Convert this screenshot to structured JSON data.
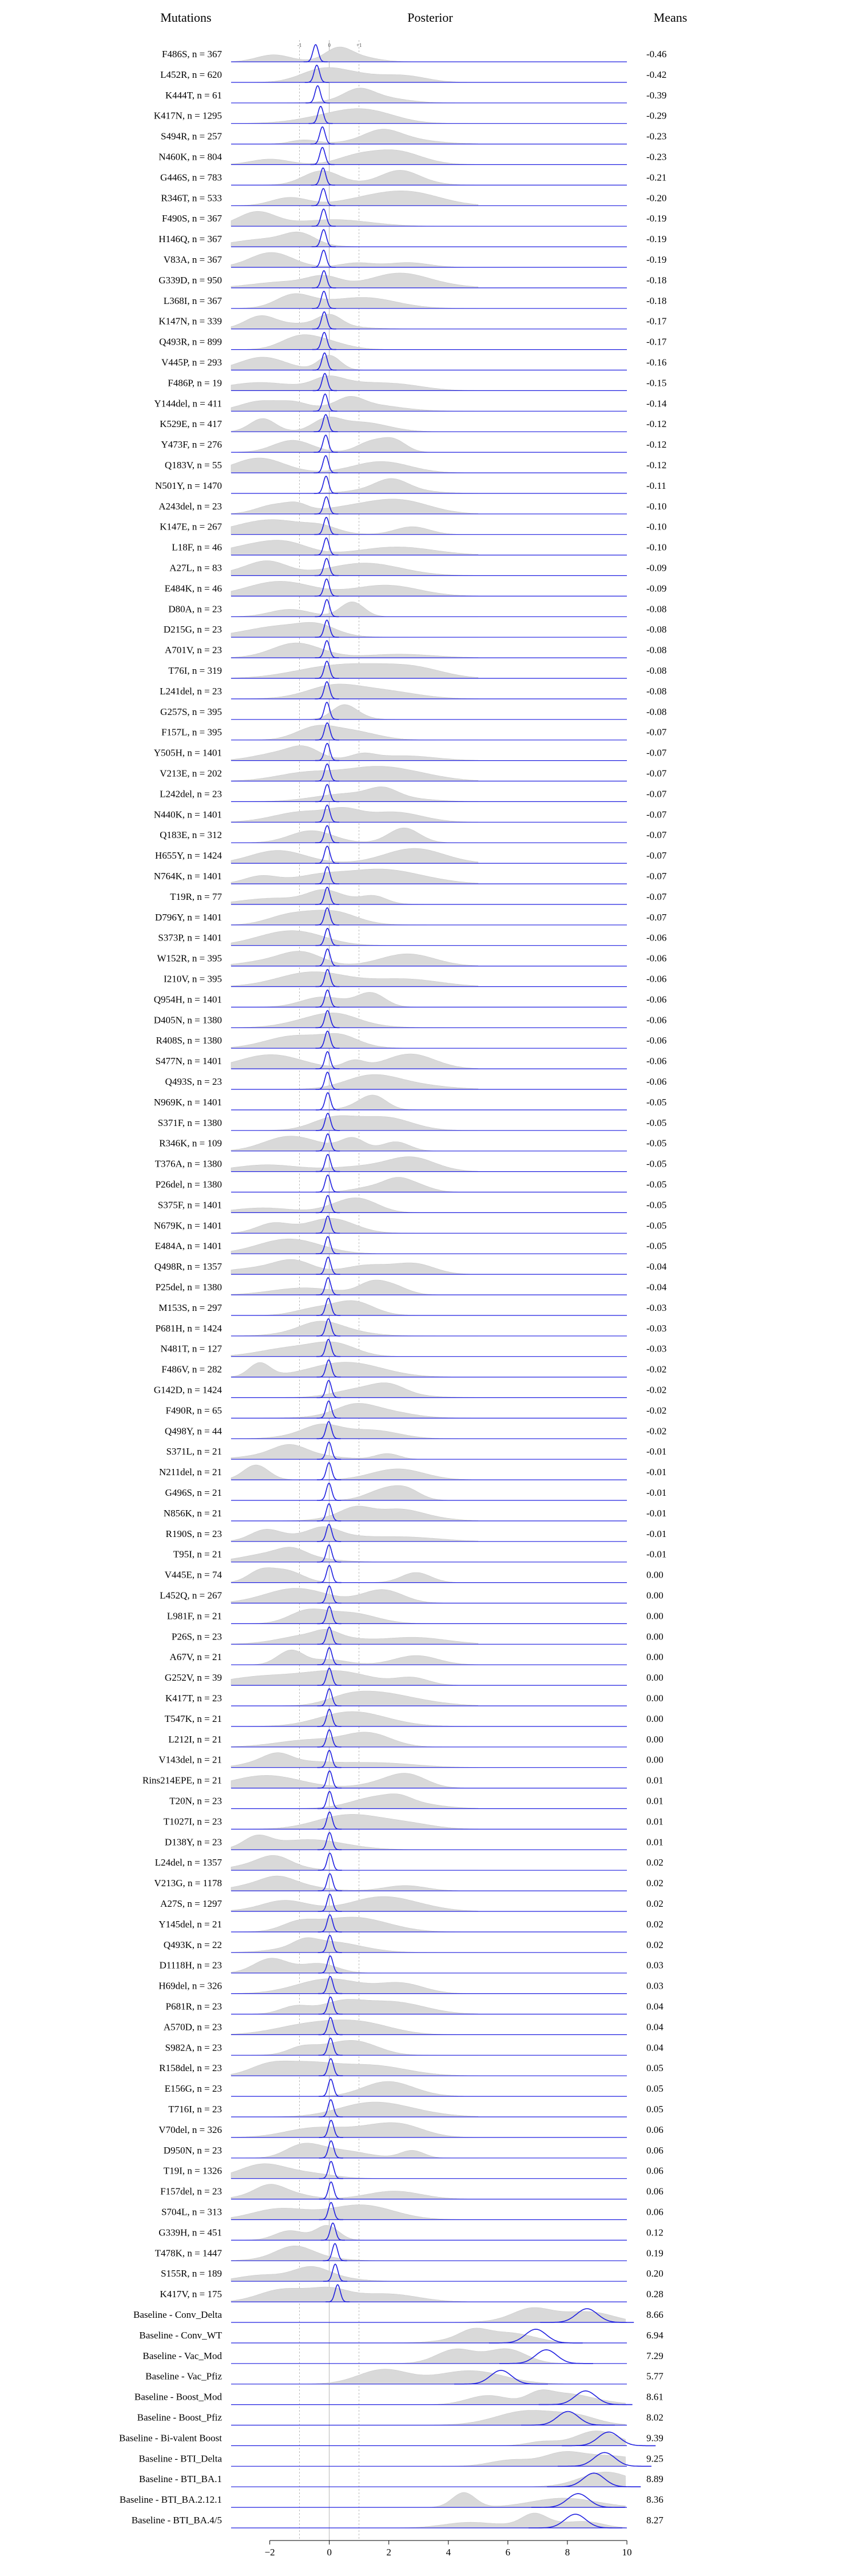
{
  "headers": {
    "left": "Mutations",
    "center": "Posterior",
    "right": "Means"
  },
  "chart_data": {
    "type": "ridgeline",
    "xlim": [
      -3.3,
      10
    ],
    "xticks": [
      -2,
      0,
      2,
      4,
      6,
      8,
      10
    ],
    "reference_lines": [
      -1,
      0,
      1
    ],
    "grid": false,
    "colors": {
      "posterior": "#1f1fe0",
      "background_density": "#d9d9d9",
      "reference": "#999999"
    },
    "rows": [
      {
        "label": "F486S, n = 367",
        "mean": -0.46
      },
      {
        "label": "L452R, n = 620",
        "mean": -0.42
      },
      {
        "label": "K444T, n = 61",
        "mean": -0.39
      },
      {
        "label": "K417N, n = 1295",
        "mean": -0.29
      },
      {
        "label": "S494R, n = 257",
        "mean": -0.23
      },
      {
        "label": "N460K, n = 804",
        "mean": -0.23
      },
      {
        "label": "G446S, n = 783",
        "mean": -0.21
      },
      {
        "label": "R346T, n = 533",
        "mean": -0.2
      },
      {
        "label": "F490S, n = 367",
        "mean": -0.19
      },
      {
        "label": "H146Q, n = 367",
        "mean": -0.19
      },
      {
        "label": "V83A, n = 367",
        "mean": -0.19
      },
      {
        "label": "G339D, n = 950",
        "mean": -0.18
      },
      {
        "label": "L368I, n = 367",
        "mean": -0.18
      },
      {
        "label": "K147N, n = 339",
        "mean": -0.17
      },
      {
        "label": "Q493R, n = 899",
        "mean": -0.17
      },
      {
        "label": "V445P, n = 293",
        "mean": -0.16
      },
      {
        "label": "F486P, n = 19",
        "mean": -0.15
      },
      {
        "label": "Y144del, n = 411",
        "mean": -0.14
      },
      {
        "label": "K529E, n = 417",
        "mean": -0.12
      },
      {
        "label": "Y473F, n = 276",
        "mean": -0.12
      },
      {
        "label": "Q183V, n = 55",
        "mean": -0.12
      },
      {
        "label": "N501Y, n = 1470",
        "mean": -0.11
      },
      {
        "label": "A243del, n = 23",
        "mean": -0.1
      },
      {
        "label": "K147E, n = 267",
        "mean": -0.1
      },
      {
        "label": "L18F, n = 46",
        "mean": -0.1
      },
      {
        "label": "A27L, n = 83",
        "mean": -0.09
      },
      {
        "label": "E484K, n = 46",
        "mean": -0.09
      },
      {
        "label": "D80A, n = 23",
        "mean": -0.08
      },
      {
        "label": "D215G, n = 23",
        "mean": -0.08
      },
      {
        "label": "A701V, n = 23",
        "mean": -0.08
      },
      {
        "label": "T76I, n = 319",
        "mean": -0.08
      },
      {
        "label": "L241del, n = 23",
        "mean": -0.08
      },
      {
        "label": "G257S, n = 395",
        "mean": -0.08
      },
      {
        "label": "F157L, n = 395",
        "mean": -0.07
      },
      {
        "label": "Y505H, n = 1401",
        "mean": -0.07
      },
      {
        "label": "V213E, n = 202",
        "mean": -0.07
      },
      {
        "label": "L242del, n = 23",
        "mean": -0.07
      },
      {
        "label": "N440K, n = 1401",
        "mean": -0.07
      },
      {
        "label": "Q183E, n = 312",
        "mean": -0.07
      },
      {
        "label": "H655Y, n = 1424",
        "mean": -0.07
      },
      {
        "label": "N764K, n = 1401",
        "mean": -0.07
      },
      {
        "label": "T19R, n = 77",
        "mean": -0.07
      },
      {
        "label": "D796Y, n = 1401",
        "mean": -0.07
      },
      {
        "label": "S373P, n = 1401",
        "mean": -0.06
      },
      {
        "label": "W152R, n = 395",
        "mean": -0.06
      },
      {
        "label": "I210V, n = 395",
        "mean": -0.06
      },
      {
        "label": "Q954H, n = 1401",
        "mean": -0.06
      },
      {
        "label": "D405N, n = 1380",
        "mean": -0.06
      },
      {
        "label": "R408S, n = 1380",
        "mean": -0.06
      },
      {
        "label": "S477N, n = 1401",
        "mean": -0.06
      },
      {
        "label": "Q493S, n = 23",
        "mean": -0.06
      },
      {
        "label": "N969K, n = 1401",
        "mean": -0.05
      },
      {
        "label": "S371F, n = 1380",
        "mean": -0.05
      },
      {
        "label": "R346K, n = 109",
        "mean": -0.05
      },
      {
        "label": "T376A, n = 1380",
        "mean": -0.05
      },
      {
        "label": "P26del, n = 1380",
        "mean": -0.05
      },
      {
        "label": "S375F, n = 1401",
        "mean": -0.05
      },
      {
        "label": "N679K, n = 1401",
        "mean": -0.05
      },
      {
        "label": "E484A, n = 1401",
        "mean": -0.05
      },
      {
        "label": "Q498R, n = 1357",
        "mean": -0.04
      },
      {
        "label": "P25del, n = 1380",
        "mean": -0.04
      },
      {
        "label": "M153S, n = 297",
        "mean": -0.03
      },
      {
        "label": "P681H, n = 1424",
        "mean": -0.03
      },
      {
        "label": "N481T, n = 127",
        "mean": -0.03
      },
      {
        "label": "F486V, n = 282",
        "mean": -0.02
      },
      {
        "label": "G142D, n = 1424",
        "mean": -0.02
      },
      {
        "label": "F490R, n = 65",
        "mean": -0.02
      },
      {
        "label": "Q498Y, n = 44",
        "mean": -0.02
      },
      {
        "label": "S371L, n = 21",
        "mean": -0.01
      },
      {
        "label": "N211del, n = 21",
        "mean": -0.01
      },
      {
        "label": "G496S, n = 21",
        "mean": -0.01
      },
      {
        "label": "N856K, n = 21",
        "mean": -0.01
      },
      {
        "label": "R190S, n = 23",
        "mean": -0.01
      },
      {
        "label": "T95I, n = 21",
        "mean": -0.01
      },
      {
        "label": "V445E, n = 74",
        "mean": -0.0
      },
      {
        "label": "L452Q, n = 267",
        "mean": -0.0
      },
      {
        "label": "L981F, n = 21",
        "mean": -0.0
      },
      {
        "label": "P26S, n = 23",
        "mean": -0.0
      },
      {
        "label": "A67V, n = 21",
        "mean": -0.0
      },
      {
        "label": "G252V, n = 39",
        "mean": -0.0
      },
      {
        "label": "K417T, n = 23",
        "mean": 0.0
      },
      {
        "label": "T547K, n = 21",
        "mean": 0.0
      },
      {
        "label": "L212I, n = 21",
        "mean": 0.0
      },
      {
        "label": "V143del, n = 21",
        "mean": 0.0
      },
      {
        "label": "Rins214EPE, n = 21",
        "mean": 0.01
      },
      {
        "label": "T20N, n = 23",
        "mean": 0.01
      },
      {
        "label": "T1027I, n = 23",
        "mean": 0.01
      },
      {
        "label": "D138Y, n = 23",
        "mean": 0.01
      },
      {
        "label": "L24del, n = 1357",
        "mean": 0.02
      },
      {
        "label": "V213G, n = 1178",
        "mean": 0.02
      },
      {
        "label": "A27S, n = 1297",
        "mean": 0.02
      },
      {
        "label": "Y145del, n = 21",
        "mean": 0.02
      },
      {
        "label": "Q493K, n = 22",
        "mean": 0.02
      },
      {
        "label": "D1118H, n = 23",
        "mean": 0.03
      },
      {
        "label": "H69del, n = 326",
        "mean": 0.03
      },
      {
        "label": "P681R, n = 23",
        "mean": 0.04
      },
      {
        "label": "A570D, n = 23",
        "mean": 0.04
      },
      {
        "label": "S982A, n = 23",
        "mean": 0.04
      },
      {
        "label": "R158del, n = 23",
        "mean": 0.05
      },
      {
        "label": "E156G, n = 23",
        "mean": 0.05
      },
      {
        "label": "T716I, n = 23",
        "mean": 0.05
      },
      {
        "label": "V70del, n = 326",
        "mean": 0.06
      },
      {
        "label": "D950N, n = 23",
        "mean": 0.06
      },
      {
        "label": "T19I, n = 1326",
        "mean": 0.06
      },
      {
        "label": "F157del, n = 23",
        "mean": 0.06
      },
      {
        "label": "S704L, n = 313",
        "mean": 0.06
      },
      {
        "label": "G339H, n = 451",
        "mean": 0.12
      },
      {
        "label": "T478K, n = 1447",
        "mean": 0.19
      },
      {
        "label": "S155R, n = 189",
        "mean": 0.2
      },
      {
        "label": "K417V, n = 175",
        "mean": 0.28
      },
      {
        "label": "Baseline - Conv_Delta",
        "mean": 8.66
      },
      {
        "label": "Baseline - Conv_WT",
        "mean": 6.94
      },
      {
        "label": "Baseline - Vac_Mod",
        "mean": 7.29
      },
      {
        "label": "Baseline - Vac_Pfiz",
        "mean": 5.77
      },
      {
        "label": "Baseline - Boost_Mod",
        "mean": 8.61
      },
      {
        "label": "Baseline - Boost_Pfiz",
        "mean": 8.02
      },
      {
        "label": "Baseline - Bi-valent Boost",
        "mean": 9.39
      },
      {
        "label": "Baseline - BTI_Delta",
        "mean": 9.25
      },
      {
        "label": "Baseline - BTI_BA.1",
        "mean": 8.89
      },
      {
        "label": "Baseline - BTI_BA.2.12.1",
        "mean": 8.36
      },
      {
        "label": "Baseline - BTI_BA.4/5",
        "mean": 8.27
      }
    ]
  }
}
